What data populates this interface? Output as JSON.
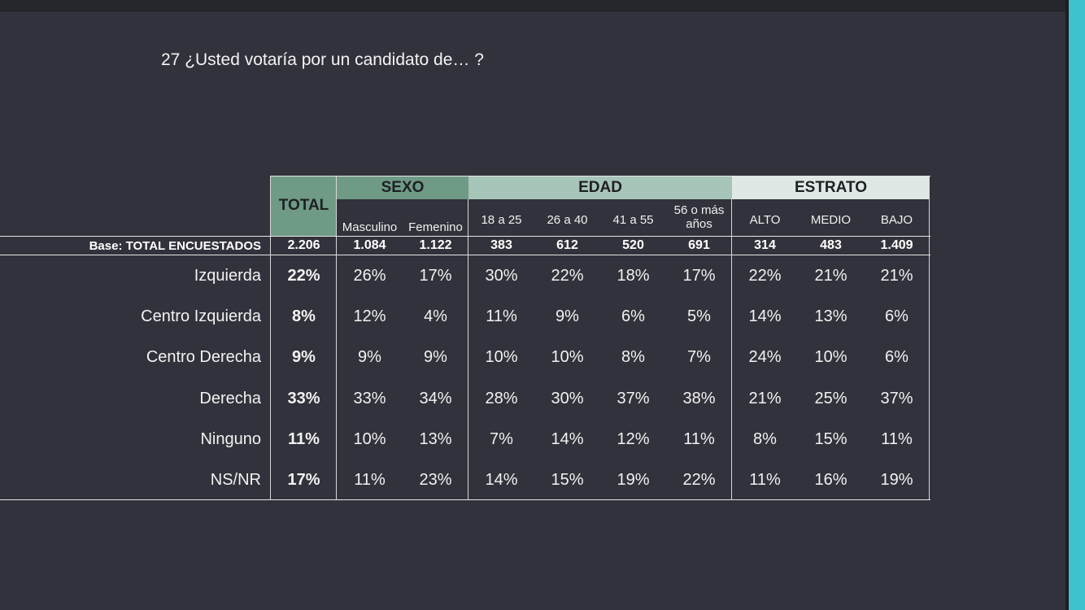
{
  "question": "27 ¿Usted votaría por un candidato de… ?",
  "header": {
    "total": "TOTAL",
    "groups": [
      "SEXO",
      "EDAD",
      "ESTRATO"
    ]
  },
  "columns": [
    "Masculino",
    "Femenino",
    "18 a 25",
    "26 a 40",
    "41 a 55",
    "56 o más años",
    "ALTO",
    "MEDIO",
    "BAJO"
  ],
  "base": {
    "label": "Base: TOTAL ENCUESTADOS",
    "values": [
      "2.206",
      "1.084",
      "1.122",
      "383",
      "612",
      "520",
      "691",
      "314",
      "483",
      "1.409"
    ]
  },
  "rows": [
    {
      "label": "Izquierda",
      "values": [
        "22%",
        "26%",
        "17%",
        "30%",
        "22%",
        "18%",
        "17%",
        "22%",
        "21%",
        "21%"
      ]
    },
    {
      "label": "Centro Izquierda",
      "values": [
        "8%",
        "12%",
        "4%",
        "11%",
        "9%",
        "6%",
        "5%",
        "14%",
        "13%",
        "6%"
      ]
    },
    {
      "label": "Centro Derecha",
      "values": [
        "9%",
        "9%",
        "9%",
        "10%",
        "10%",
        "8%",
        "7%",
        "24%",
        "10%",
        "6%"
      ]
    },
    {
      "label": "Derecha",
      "values": [
        "33%",
        "33%",
        "34%",
        "28%",
        "30%",
        "37%",
        "38%",
        "21%",
        "25%",
        "37%"
      ]
    },
    {
      "label": "Ninguno",
      "values": [
        "11%",
        "10%",
        "13%",
        "7%",
        "14%",
        "12%",
        "11%",
        "8%",
        "15%",
        "11%"
      ]
    },
    {
      "label": "NS/NR",
      "values": [
        "17%",
        "11%",
        "23%",
        "14%",
        "15%",
        "19%",
        "22%",
        "11%",
        "16%",
        "19%"
      ]
    }
  ],
  "colors": {
    "background": "#31323b",
    "total_header": "#6f9a86",
    "sexo_header": "#6f9a86",
    "edad_header": "#a7c4b8",
    "estrato_header": "#dfe8e5",
    "accent": "#3cc3cc"
  }
}
